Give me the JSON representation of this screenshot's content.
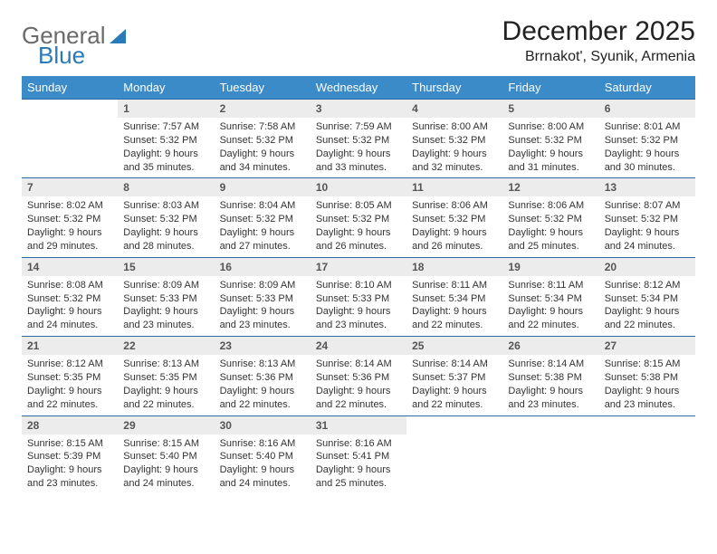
{
  "logo": {
    "part1": "General",
    "part2": "Blue"
  },
  "title": {
    "month": "December 2025",
    "location": "Brrnakot', Syunik, Armenia"
  },
  "colors": {
    "header_bg": "#3b8bc9",
    "header_text": "#ffffff",
    "row_border": "#2a6aa0",
    "daynum_bg": "#ececec",
    "logo_gray": "#6a6a6a",
    "logo_blue": "#2a7ab8"
  },
  "weekdays": [
    "Sunday",
    "Monday",
    "Tuesday",
    "Wednesday",
    "Thursday",
    "Friday",
    "Saturday"
  ],
  "grid": [
    [
      null,
      {
        "n": "1",
        "sr": "7:57 AM",
        "ss": "5:32 PM",
        "dl": "9 hours and 35 minutes."
      },
      {
        "n": "2",
        "sr": "7:58 AM",
        "ss": "5:32 PM",
        "dl": "9 hours and 34 minutes."
      },
      {
        "n": "3",
        "sr": "7:59 AM",
        "ss": "5:32 PM",
        "dl": "9 hours and 33 minutes."
      },
      {
        "n": "4",
        "sr": "8:00 AM",
        "ss": "5:32 PM",
        "dl": "9 hours and 32 minutes."
      },
      {
        "n": "5",
        "sr": "8:00 AM",
        "ss": "5:32 PM",
        "dl": "9 hours and 31 minutes."
      },
      {
        "n": "6",
        "sr": "8:01 AM",
        "ss": "5:32 PM",
        "dl": "9 hours and 30 minutes."
      }
    ],
    [
      {
        "n": "7",
        "sr": "8:02 AM",
        "ss": "5:32 PM",
        "dl": "9 hours and 29 minutes."
      },
      {
        "n": "8",
        "sr": "8:03 AM",
        "ss": "5:32 PM",
        "dl": "9 hours and 28 minutes."
      },
      {
        "n": "9",
        "sr": "8:04 AM",
        "ss": "5:32 PM",
        "dl": "9 hours and 27 minutes."
      },
      {
        "n": "10",
        "sr": "8:05 AM",
        "ss": "5:32 PM",
        "dl": "9 hours and 26 minutes."
      },
      {
        "n": "11",
        "sr": "8:06 AM",
        "ss": "5:32 PM",
        "dl": "9 hours and 26 minutes."
      },
      {
        "n": "12",
        "sr": "8:06 AM",
        "ss": "5:32 PM",
        "dl": "9 hours and 25 minutes."
      },
      {
        "n": "13",
        "sr": "8:07 AM",
        "ss": "5:32 PM",
        "dl": "9 hours and 24 minutes."
      }
    ],
    [
      {
        "n": "14",
        "sr": "8:08 AM",
        "ss": "5:32 PM",
        "dl": "9 hours and 24 minutes."
      },
      {
        "n": "15",
        "sr": "8:09 AM",
        "ss": "5:33 PM",
        "dl": "9 hours and 23 minutes."
      },
      {
        "n": "16",
        "sr": "8:09 AM",
        "ss": "5:33 PM",
        "dl": "9 hours and 23 minutes."
      },
      {
        "n": "17",
        "sr": "8:10 AM",
        "ss": "5:33 PM",
        "dl": "9 hours and 23 minutes."
      },
      {
        "n": "18",
        "sr": "8:11 AM",
        "ss": "5:34 PM",
        "dl": "9 hours and 22 minutes."
      },
      {
        "n": "19",
        "sr": "8:11 AM",
        "ss": "5:34 PM",
        "dl": "9 hours and 22 minutes."
      },
      {
        "n": "20",
        "sr": "8:12 AM",
        "ss": "5:34 PM",
        "dl": "9 hours and 22 minutes."
      }
    ],
    [
      {
        "n": "21",
        "sr": "8:12 AM",
        "ss": "5:35 PM",
        "dl": "9 hours and 22 minutes."
      },
      {
        "n": "22",
        "sr": "8:13 AM",
        "ss": "5:35 PM",
        "dl": "9 hours and 22 minutes."
      },
      {
        "n": "23",
        "sr": "8:13 AM",
        "ss": "5:36 PM",
        "dl": "9 hours and 22 minutes."
      },
      {
        "n": "24",
        "sr": "8:14 AM",
        "ss": "5:36 PM",
        "dl": "9 hours and 22 minutes."
      },
      {
        "n": "25",
        "sr": "8:14 AM",
        "ss": "5:37 PM",
        "dl": "9 hours and 22 minutes."
      },
      {
        "n": "26",
        "sr": "8:14 AM",
        "ss": "5:38 PM",
        "dl": "9 hours and 23 minutes."
      },
      {
        "n": "27",
        "sr": "8:15 AM",
        "ss": "5:38 PM",
        "dl": "9 hours and 23 minutes."
      }
    ],
    [
      {
        "n": "28",
        "sr": "8:15 AM",
        "ss": "5:39 PM",
        "dl": "9 hours and 23 minutes."
      },
      {
        "n": "29",
        "sr": "8:15 AM",
        "ss": "5:40 PM",
        "dl": "9 hours and 24 minutes."
      },
      {
        "n": "30",
        "sr": "8:16 AM",
        "ss": "5:40 PM",
        "dl": "9 hours and 24 minutes."
      },
      {
        "n": "31",
        "sr": "8:16 AM",
        "ss": "5:41 PM",
        "dl": "9 hours and 25 minutes."
      },
      null,
      null,
      null
    ]
  ],
  "labels": {
    "sunrise": "Sunrise:",
    "sunset": "Sunset:",
    "daylight": "Daylight:"
  }
}
